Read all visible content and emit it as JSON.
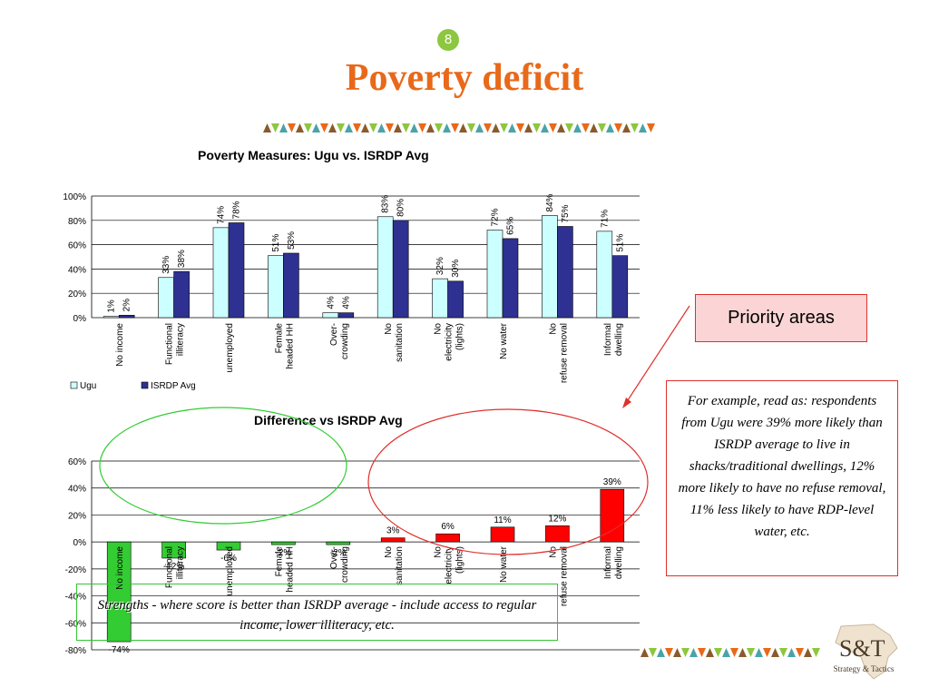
{
  "slide": {
    "number": "8",
    "title": "Poverty deficit"
  },
  "callouts": {
    "priority": "Priority areas",
    "example": "For example, read as: respondents from Ugu were 39% more likely than ISRDP average to live in shacks/traditional dwellings, 12% more likely to have no refuse removal, 11% less likely to have RDP-level water, etc.",
    "strengths": "Strengths - where score is better than ISRDP average - include access to regular income, lower illiteracy, etc."
  },
  "logo": {
    "mark": "S&T",
    "tagline": "Strategy & Tactics"
  },
  "colors": {
    "title": "#e8691a",
    "ugu": "#ccffff",
    "isrdp": "#2e3192",
    "negative": "#33cc33",
    "positive": "#ff0000",
    "accent_red": "#e0302c"
  },
  "chart_data": [
    {
      "type": "bar",
      "title": "Poverty Measures: Ugu vs. ISRDP Avg",
      "categories": [
        "No income",
        "Functional illiteracy",
        "unemployed",
        "Female headed HH",
        "Over-crowding",
        "No sanitation",
        "No electricity (lights)",
        "No water",
        "No refuse removal",
        "Informal dwelling"
      ],
      "series": [
        {
          "name": "Ugu",
          "values": [
            1,
            33,
            74,
            51,
            4,
            83,
            32,
            72,
            84,
            71
          ]
        },
        {
          "name": "ISRDP Avg",
          "values": [
            2,
            38,
            78,
            53,
            4,
            80,
            30,
            65,
            75,
            51
          ]
        }
      ],
      "ylim": [
        0,
        100
      ],
      "yticks": [
        "0%",
        "20%",
        "40%",
        "60%",
        "80%",
        "100%"
      ],
      "grid": true,
      "legend": "bottom-left"
    },
    {
      "type": "bar",
      "title": "Difference vs ISRDP Avg",
      "categories": [
        "No income",
        "Functional illiteracy",
        "unemployed",
        "Female headed HH",
        "Over-crowding",
        "No sanitation",
        "No electricity (lights)",
        "No water",
        "No refuse removal",
        "Informal dwelling"
      ],
      "values": [
        -74,
        -12,
        -6,
        -2,
        -2,
        3,
        6,
        11,
        12,
        39
      ],
      "value_labels": [
        "-74%",
        "-12%",
        "-6%",
        "-2%",
        "-2%",
        "3%",
        "6%",
        "11%",
        "12%",
        "39%"
      ],
      "ylim": [
        -80,
        60
      ],
      "yticks": [
        "-80%",
        "-60%",
        "-40%",
        "-20%",
        "0%",
        "20%",
        "40%",
        "60%"
      ],
      "grid": true
    }
  ]
}
